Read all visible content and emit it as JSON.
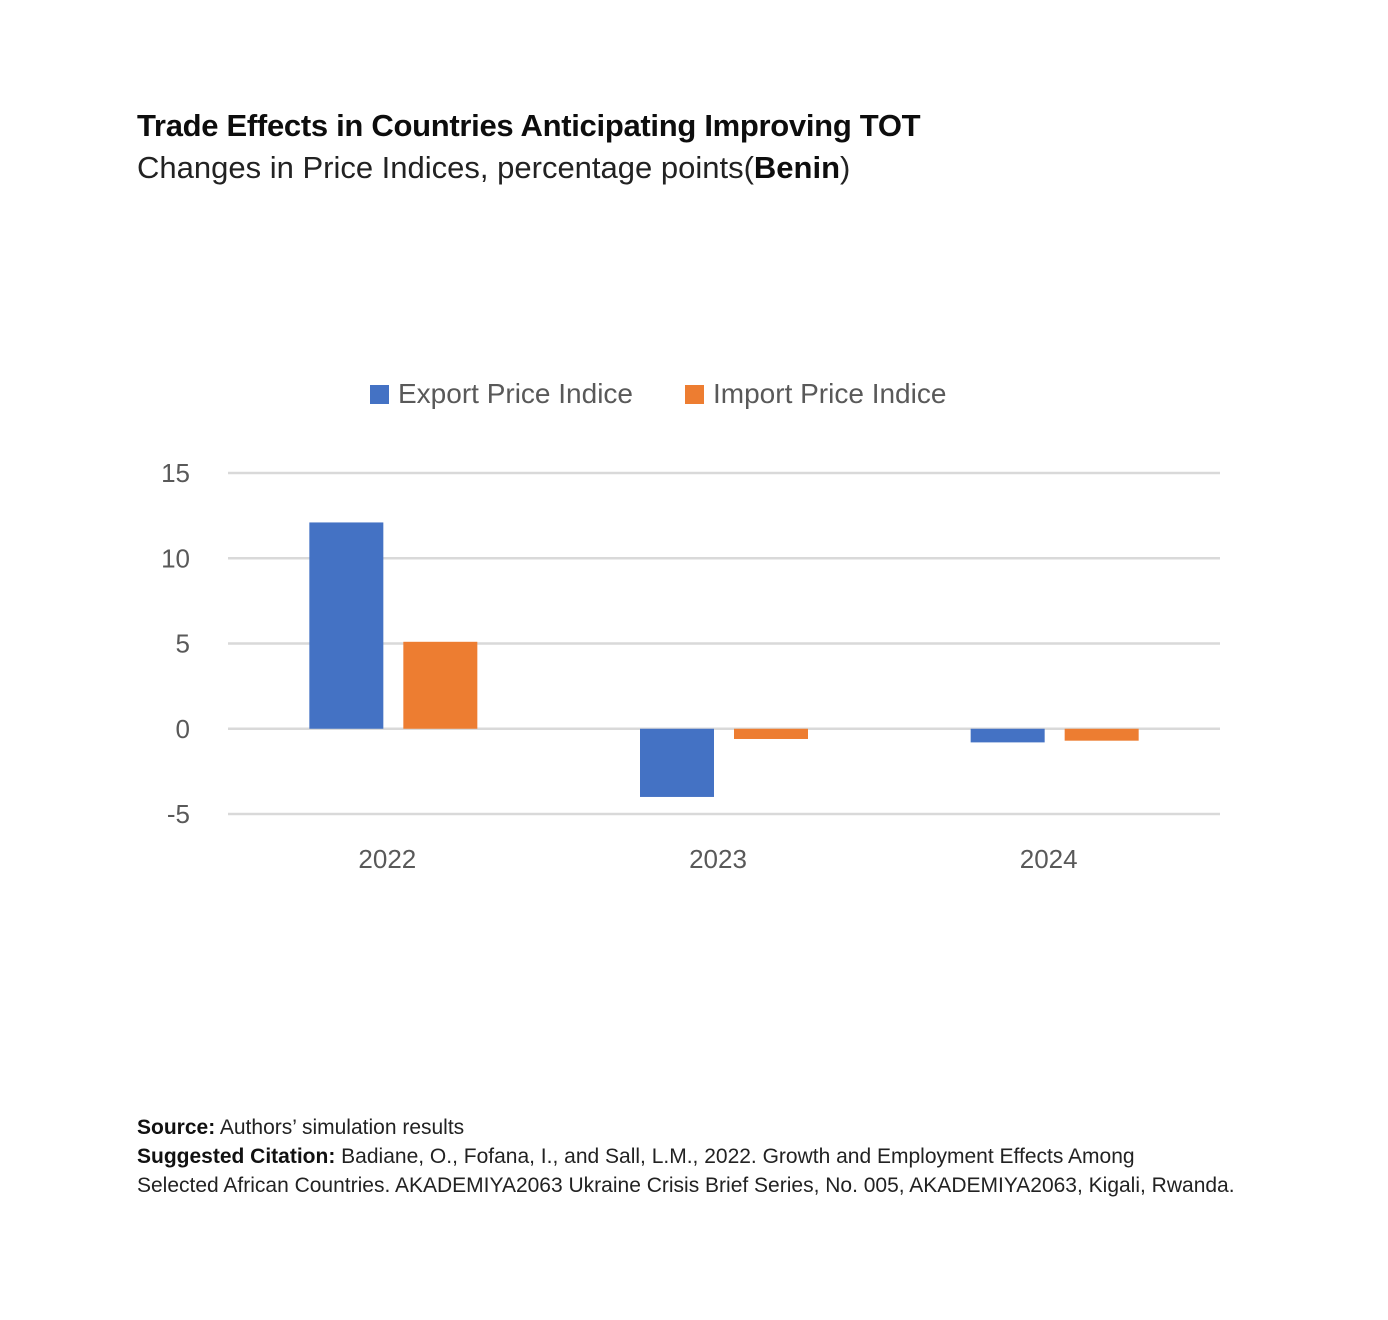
{
  "header": {
    "title": "Trade Effects in Countries Anticipating Improving TOT",
    "subtitle_prefix": "Changes in Price Indices, percentage points(",
    "subtitle_country": "Benin",
    "subtitle_suffix": ")"
  },
  "chart_data": {
    "type": "bar",
    "categories": [
      "2022",
      "2023",
      "2024"
    ],
    "series": [
      {
        "name": "Export Price Indice",
        "values": [
          12.1,
          -4.0,
          -0.8
        ],
        "color": "#4472C4"
      },
      {
        "name": "Import Price Indice",
        "values": [
          5.1,
          -0.6,
          -0.7
        ],
        "color": "#ED7D31"
      }
    ],
    "ylim": [
      -5,
      15
    ],
    "yticks": [
      "15",
      "10",
      "5",
      "0",
      "-5"
    ],
    "grid": true,
    "legend": "top-center",
    "xlabel": "",
    "ylabel": ""
  },
  "footer": {
    "source_label": "Source:",
    "source_text": " Authors’ simulation results",
    "citation_label": "Suggested Citation:",
    "citation_text_1": " Badiane, O., Fofana, I., and Sall, L.M., 2022. Growth and Employment Effects Among",
    "citation_text_2": "Selected African Countries. AKADEMIYA2063 Ukraine Crisis Brief Series, No. 005, AKADEMIYA2063, Kigali, Rwanda."
  }
}
